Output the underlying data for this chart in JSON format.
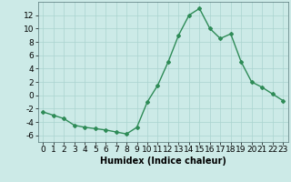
{
  "x": [
    0,
    1,
    2,
    3,
    4,
    5,
    6,
    7,
    8,
    9,
    10,
    11,
    12,
    13,
    14,
    15,
    16,
    17,
    18,
    19,
    20,
    21,
    22,
    23
  ],
  "y": [
    -2.5,
    -3.0,
    -3.5,
    -4.5,
    -4.8,
    -5.0,
    -5.2,
    -5.5,
    -5.8,
    -4.8,
    -1.0,
    1.5,
    5.0,
    9.0,
    12.0,
    13.0,
    10.0,
    8.5,
    9.2,
    5.0,
    2.0,
    1.2,
    0.2,
    -0.8
  ],
  "line_color": "#2e8b57",
  "marker": "D",
  "marker_size": 2.0,
  "bg_color": "#cceae7",
  "grid_color": "#aad4d0",
  "xlabel": "Humidex (Indice chaleur)",
  "xlim": [
    -0.5,
    23.5
  ],
  "ylim": [
    -7,
    14
  ],
  "yticks": [
    -6,
    -4,
    -2,
    0,
    2,
    4,
    6,
    8,
    10,
    12
  ],
  "xticks": [
    0,
    1,
    2,
    3,
    4,
    5,
    6,
    7,
    8,
    9,
    10,
    11,
    12,
    13,
    14,
    15,
    16,
    17,
    18,
    19,
    20,
    21,
    22,
    23
  ],
  "xlabel_fontsize": 7,
  "tick_fontsize": 6.5,
  "linewidth": 1.0
}
